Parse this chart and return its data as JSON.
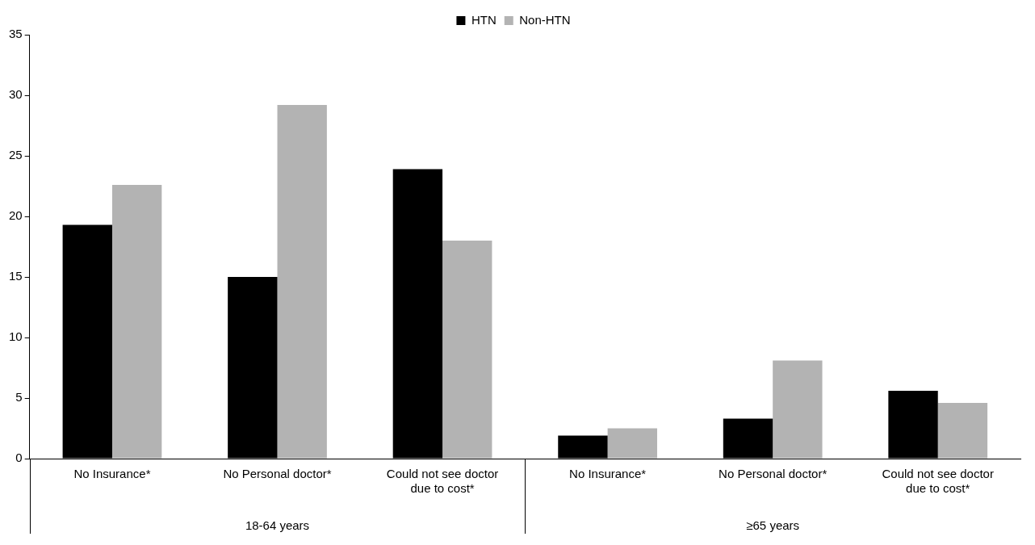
{
  "chart_data": {
    "type": "bar",
    "categories": [
      "No Insurance*",
      "No Personal doctor*",
      "Could not see doctor due to cost*",
      "No Insurance*",
      "No Personal doctor*",
      "Could not see doctor due to cost*"
    ],
    "series": [
      {
        "name": "HTN",
        "color": "#000000",
        "values": [
          19.3,
          15.0,
          23.9,
          1.9,
          3.3,
          5.6
        ]
      },
      {
        "name": "Non-HTN",
        "color": "#b3b3b3",
        "values": [
          22.6,
          29.2,
          18.0,
          2.5,
          8.1,
          4.6
        ]
      }
    ],
    "annotations": [
      "18-64 years",
      "≥65 years"
    ],
    "ylim": [
      0,
      35
    ],
    "yticks": [
      0,
      5,
      10,
      15,
      20,
      25,
      30,
      35
    ],
    "grid": false,
    "legend": "top"
  }
}
